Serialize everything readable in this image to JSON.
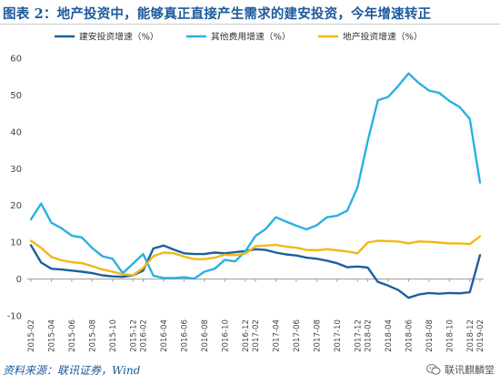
{
  "title": "图表 2：地产投资中，能够真正直接产生需求的建安投资，今年增速转正",
  "source": "资料来源：联讯证券，Wind",
  "watermark": "联讯麒麟堂",
  "chart_data": {
    "type": "line",
    "x": [
      "2015-02",
      "2015-03",
      "2015-04",
      "2015-05",
      "2015-06",
      "2015-07",
      "2015-08",
      "2015-09",
      "2015-10",
      "2015-11",
      "2015-12",
      "2016-02",
      "2016-03",
      "2016-04",
      "2016-05",
      "2016-06",
      "2016-07",
      "2016-08",
      "2016-09",
      "2016-10",
      "2016-11",
      "2016-12",
      "2017-02",
      "2017-03",
      "2017-04",
      "2017-05",
      "2017-06",
      "2017-07",
      "2017-08",
      "2017-09",
      "2017-10",
      "2017-11",
      "2017-12",
      "2018-02",
      "2018-03",
      "2018-04",
      "2018-05",
      "2018-06",
      "2018-07",
      "2018-08",
      "2018-09",
      "2018-10",
      "2018-11",
      "2018-12",
      "2019-02"
    ],
    "xticks": [
      "2015-02",
      "2015-04",
      "2015-06",
      "2015-08",
      "2015-10",
      "2015-12",
      "2016-02",
      "2016-04",
      "2016-06",
      "2016-08",
      "2016-10",
      "2016-12",
      "2017-02",
      "2017-04",
      "2017-06",
      "2017-08",
      "2017-10",
      "2017-12",
      "2018-02",
      "2018-04",
      "2018-06",
      "2018-08",
      "2018-10",
      "2018-12",
      "2019-02"
    ],
    "yticks": [
      -10,
      0,
      10,
      20,
      30,
      40,
      50,
      60
    ],
    "ylim": [
      -10,
      60
    ],
    "grid": false,
    "legend_position": "top",
    "series": [
      {
        "name": "建安投资增速（%）",
        "color": "#1e5f9e",
        "values": [
          9.2,
          4.5,
          2.8,
          2.6,
          2.3,
          2.0,
          1.6,
          1.0,
          0.7,
          0.6,
          1.0,
          2.3,
          8.3,
          9.1,
          8.0,
          7.0,
          6.8,
          6.8,
          7.2,
          7.0,
          7.3,
          7.6,
          8.1,
          7.9,
          7.2,
          6.7,
          6.4,
          5.8,
          5.5,
          5.0,
          4.3,
          3.2,
          3.4,
          3.1,
          -0.8,
          -1.8,
          -3.0,
          -5.1,
          -4.2,
          -3.8,
          -4.0,
          -3.8,
          -3.9,
          -3.6,
          6.5
        ]
      },
      {
        "name": "其他费用增速（%）",
        "color": "#2ab0e3",
        "values": [
          16.2,
          20.5,
          15.3,
          13.8,
          11.8,
          11.3,
          8.4,
          6.2,
          5.5,
          1.6,
          4.2,
          6.8,
          0.9,
          0.3,
          0.3,
          0.5,
          0.1,
          2.0,
          2.8,
          5.2,
          4.8,
          7.5,
          11.7,
          13.6,
          16.8,
          15.6,
          14.5,
          13.5,
          14.6,
          16.8,
          17.2,
          18.6,
          24.9,
          37.5,
          48.6,
          49.5,
          52.5,
          55.9,
          53.3,
          51.2,
          50.6,
          48.4,
          46.8,
          43.5,
          26.2
        ]
      },
      {
        "name": "地产投资增速（%）",
        "color": "#f2b818",
        "values": [
          10.4,
          8.5,
          6.0,
          5.1,
          4.6,
          4.3,
          3.5,
          2.6,
          2.0,
          1.3,
          1.0,
          3.0,
          6.2,
          7.2,
          7.0,
          6.1,
          5.4,
          5.4,
          5.8,
          6.6,
          6.5,
          6.9,
          8.9,
          9.1,
          9.3,
          8.8,
          8.5,
          7.9,
          7.8,
          8.1,
          7.8,
          7.5,
          7.0,
          9.9,
          10.4,
          10.3,
          10.2,
          9.7,
          10.2,
          10.1,
          9.9,
          9.7,
          9.7,
          9.5,
          11.6
        ]
      }
    ]
  }
}
